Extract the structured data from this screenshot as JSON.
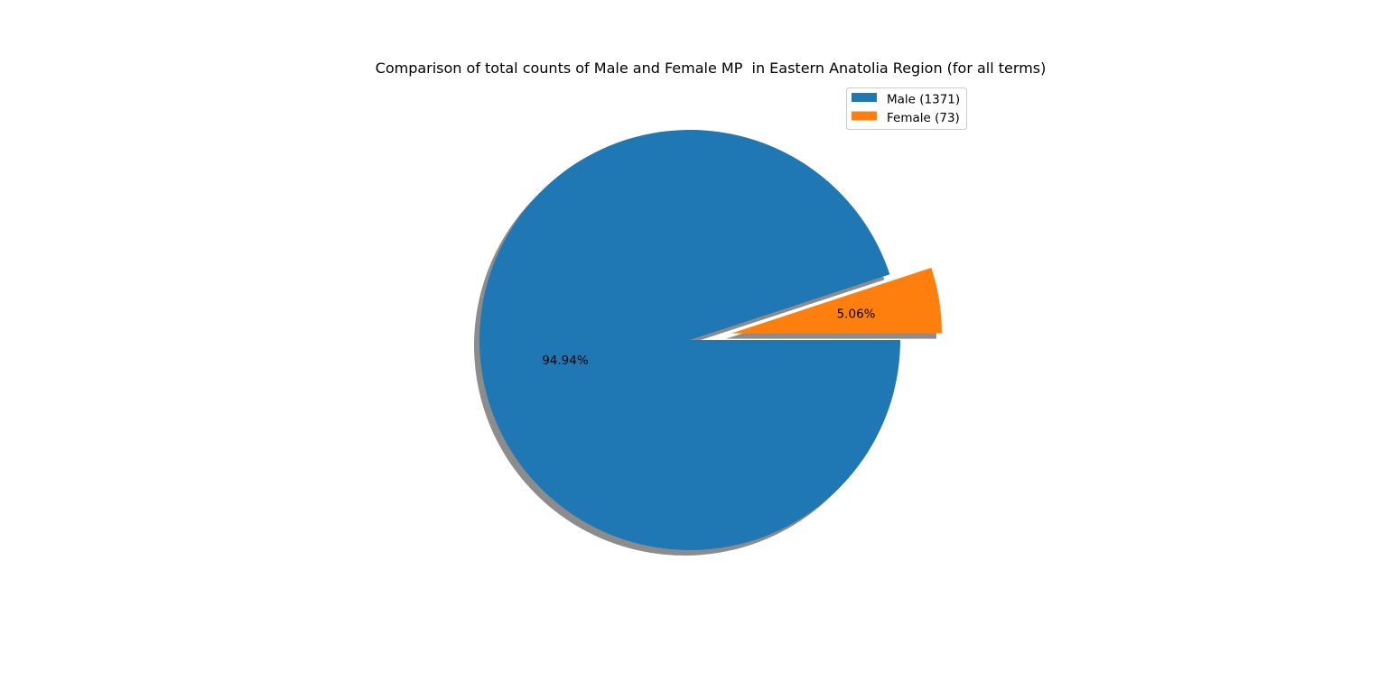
{
  "chart_data": {
    "type": "pie",
    "title": "Comparison of total counts of Male and Female MP  in Eastern Anatolia Region (for all terms)",
    "slices": [
      {
        "label": "Male (1371)",
        "value": 1371,
        "percent_label": "94.94%",
        "color": "#1f77b4",
        "exploded": false
      },
      {
        "label": "Female (73)",
        "value": 73,
        "percent_label": "5.06%",
        "color": "#ff7f0e",
        "exploded": true
      }
    ],
    "start_angle_deg": 0,
    "direction": "clockwise",
    "shadow": true,
    "legend": {
      "position": "upper-right",
      "entries": [
        "Male (1371)",
        "Female (73)"
      ]
    }
  }
}
